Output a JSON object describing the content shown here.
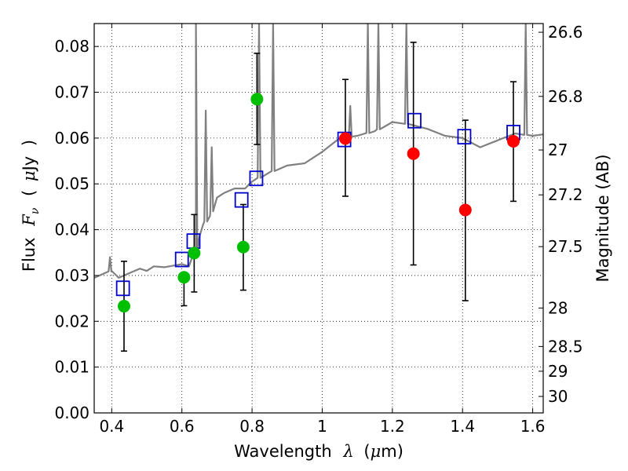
{
  "chart_data": {
    "type": "scatter",
    "xlabel": {
      "prefix": "Wavelength",
      "symbol": "λ",
      "unit_open": "(",
      "unit_mu": "μ",
      "unit_rest": "m)"
    },
    "ylabel": {
      "prefix": "Flux",
      "symbol": "F",
      "subscript": "ν",
      "unit_open": "(",
      "unit_mu": "μ",
      "unit_rest": "Jy",
      "unit_close": ")"
    },
    "ylabel_right": "Magnitude (AB)",
    "xlim": [
      0.35,
      1.63
    ],
    "ylim": [
      0.0,
      0.085
    ],
    "x_ticks": [
      0.4,
      0.6,
      0.8,
      1.0,
      1.2,
      1.4,
      1.6
    ],
    "x_tick_labels": [
      "0.4",
      "0.6",
      "0.8",
      "1",
      "1.2",
      "1.4",
      "1.6"
    ],
    "y_ticks": [
      0.0,
      0.01,
      0.02,
      0.03,
      0.04,
      0.05,
      0.06,
      0.07,
      0.08
    ],
    "y_tick_labels": [
      "0.00",
      "0.01",
      "0.02",
      "0.03",
      "0.04",
      "0.05",
      "0.06",
      "0.07",
      "0.08"
    ],
    "right_ticks": [
      {
        "label": "26.6",
        "flux": 0.0831
      },
      {
        "label": "26.8",
        "flux": 0.0691
      },
      {
        "label": "27",
        "flux": 0.0574
      },
      {
        "label": "27.2",
        "flux": 0.0476
      },
      {
        "label": "27.5",
        "flux": 0.0363
      },
      {
        "label": "28",
        "flux": 0.0229
      },
      {
        "label": "28.5",
        "flux": 0.0145
      },
      {
        "label": "29",
        "flux": 0.0091
      },
      {
        "label": "30",
        "flux": 0.0036
      }
    ],
    "grid": true,
    "colors": {
      "model": "#808080",
      "green": "#00bf00",
      "red": "#ff0000",
      "box": "#0000cc",
      "errorbar": "#000000"
    },
    "model_spectrum": {
      "x": [
        0.35,
        0.38,
        0.4,
        0.42,
        0.45,
        0.48,
        0.5,
        0.52,
        0.55,
        0.58,
        0.6,
        0.62,
        0.64,
        0.65,
        0.66,
        0.68,
        0.7,
        0.72,
        0.75,
        0.78,
        0.8,
        0.85,
        0.9,
        0.95,
        1.0,
        1.05,
        1.1,
        1.15,
        1.2,
        1.25,
        1.3,
        1.35,
        1.4,
        1.45,
        1.5,
        1.55,
        1.6,
        1.63
      ],
      "y": [
        0.0295,
        0.0305,
        0.031,
        0.0295,
        0.0305,
        0.0315,
        0.031,
        0.032,
        0.0318,
        0.0322,
        0.0325,
        0.032,
        0.0355,
        0.0385,
        0.041,
        0.043,
        0.047,
        0.048,
        0.049,
        0.049,
        0.0505,
        0.0525,
        0.054,
        0.0545,
        0.057,
        0.06,
        0.0605,
        0.0615,
        0.0635,
        0.063,
        0.062,
        0.0605,
        0.06,
        0.058,
        0.0595,
        0.061,
        0.0605,
        0.0608
      ],
      "spikes": [
        {
          "x": 0.395,
          "y": 0.034
        },
        {
          "x": 0.64,
          "y": 0.085
        },
        {
          "x": 0.668,
          "y": 0.066
        },
        {
          "x": 0.685,
          "y": 0.058
        },
        {
          "x": 0.82,
          "y": 0.085
        },
        {
          "x": 0.86,
          "y": 0.085
        },
        {
          "x": 1.08,
          "y": 0.067
        },
        {
          "x": 1.13,
          "y": 0.085
        },
        {
          "x": 1.16,
          "y": 0.085
        },
        {
          "x": 1.24,
          "y": 0.085
        },
        {
          "x": 1.58,
          "y": 0.085
        }
      ]
    },
    "series": [
      {
        "marker": "circle",
        "color": "green",
        "points": [
          {
            "x": 0.435,
            "y": 0.0233
          },
          {
            "x": 0.606,
            "y": 0.0296
          },
          {
            "x": 0.635,
            "y": 0.0349
          },
          {
            "x": 0.775,
            "y": 0.0362
          },
          {
            "x": 0.814,
            "y": 0.0685
          }
        ]
      },
      {
        "marker": "circle",
        "color": "red",
        "points": [
          {
            "x": 1.066,
            "y": 0.0599
          },
          {
            "x": 1.26,
            "y": 0.0566
          },
          {
            "x": 1.408,
            "y": 0.0443
          },
          {
            "x": 1.545,
            "y": 0.0593
          }
        ]
      },
      {
        "marker": "square",
        "color": "box",
        "points": [
          {
            "x": 0.432,
            "y": 0.0272
          },
          {
            "x": 0.6,
            "y": 0.0335
          },
          {
            "x": 0.633,
            "y": 0.0375
          },
          {
            "x": 0.77,
            "y": 0.0465
          },
          {
            "x": 0.812,
            "y": 0.0512
          },
          {
            "x": 1.063,
            "y": 0.0597
          },
          {
            "x": 1.263,
            "y": 0.0638
          },
          {
            "x": 1.405,
            "y": 0.0603
          },
          {
            "x": 1.545,
            "y": 0.0612
          }
        ]
      }
    ],
    "error_bars": [
      {
        "x": 0.435,
        "low": 0.0135,
        "high": 0.0331
      },
      {
        "x": 0.606,
        "low": 0.0234,
        "high": 0.0296
      },
      {
        "x": 0.635,
        "low": 0.0264,
        "high": 0.0433
      },
      {
        "x": 0.775,
        "low": 0.0268,
        "high": 0.0455
      },
      {
        "x": 0.814,
        "low": 0.0586,
        "high": 0.0785
      },
      {
        "x": 1.066,
        "low": 0.0473,
        "high": 0.0728
      },
      {
        "x": 1.26,
        "low": 0.0323,
        "high": 0.0809
      },
      {
        "x": 1.408,
        "low": 0.0245,
        "high": 0.0639
      },
      {
        "x": 1.545,
        "low": 0.0462,
        "high": 0.0723
      }
    ]
  }
}
